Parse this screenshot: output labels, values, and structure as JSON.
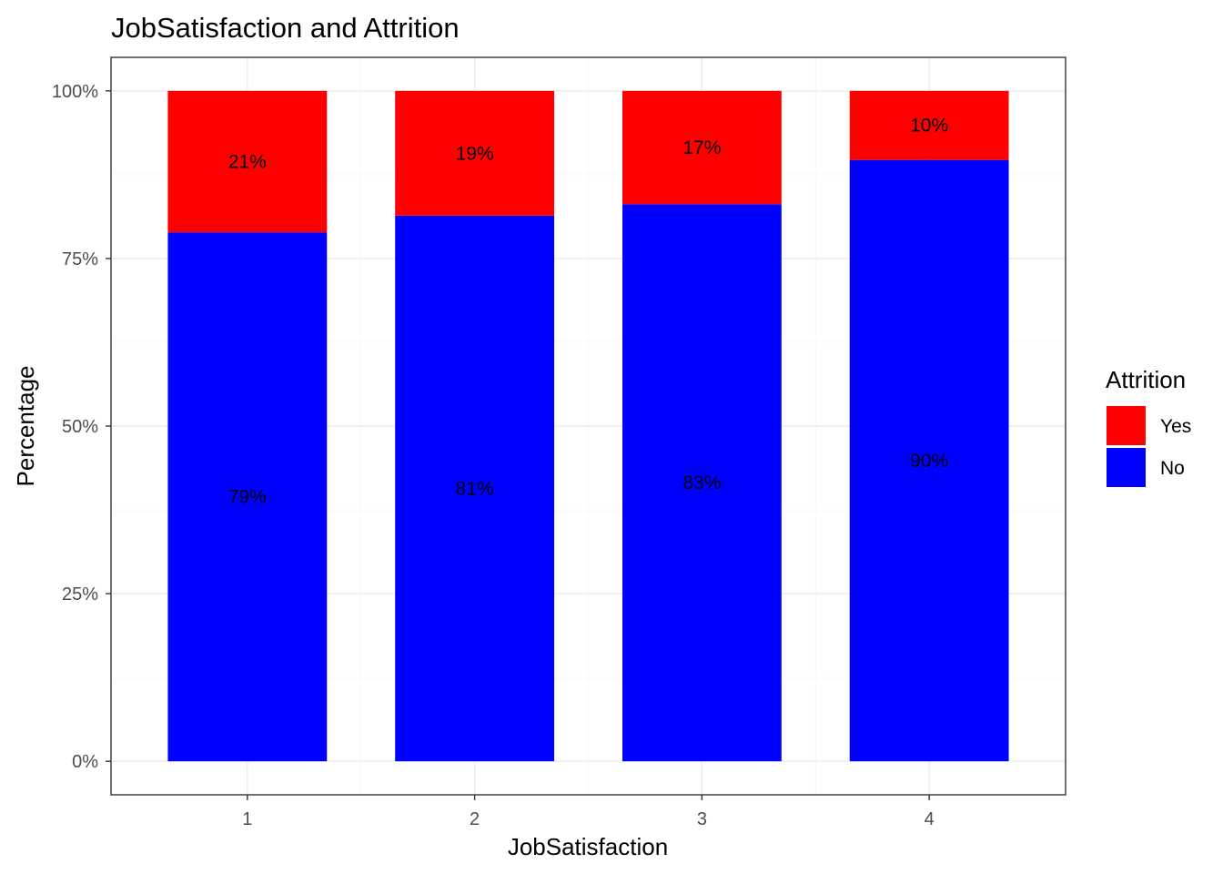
{
  "chart_data": {
    "type": "bar",
    "stacked": true,
    "title": "JobSatisfaction and Attrition",
    "xlabel": "JobSatisfaction",
    "ylabel": "Percentage",
    "categories": [
      "1",
      "2",
      "3",
      "4"
    ],
    "y_ticks": [
      "0%",
      "25%",
      "50%",
      "75%",
      "100%"
    ],
    "ylim": [
      -0.05,
      1.05
    ],
    "grid": true,
    "legend": {
      "title": "Attrition",
      "position": "right",
      "entries": [
        "Yes",
        "No"
      ]
    },
    "series": [
      {
        "name": "No",
        "color": "#0000ff",
        "values": [
          0.789,
          0.814,
          0.831,
          0.897
        ],
        "labels": [
          "79%",
          "81%",
          "83%",
          "90%"
        ]
      },
      {
        "name": "Yes",
        "color": "#ff0000",
        "values": [
          0.211,
          0.186,
          0.169,
          0.103
        ],
        "labels": [
          "21%",
          "19%",
          "17%",
          "10%"
        ]
      }
    ]
  }
}
